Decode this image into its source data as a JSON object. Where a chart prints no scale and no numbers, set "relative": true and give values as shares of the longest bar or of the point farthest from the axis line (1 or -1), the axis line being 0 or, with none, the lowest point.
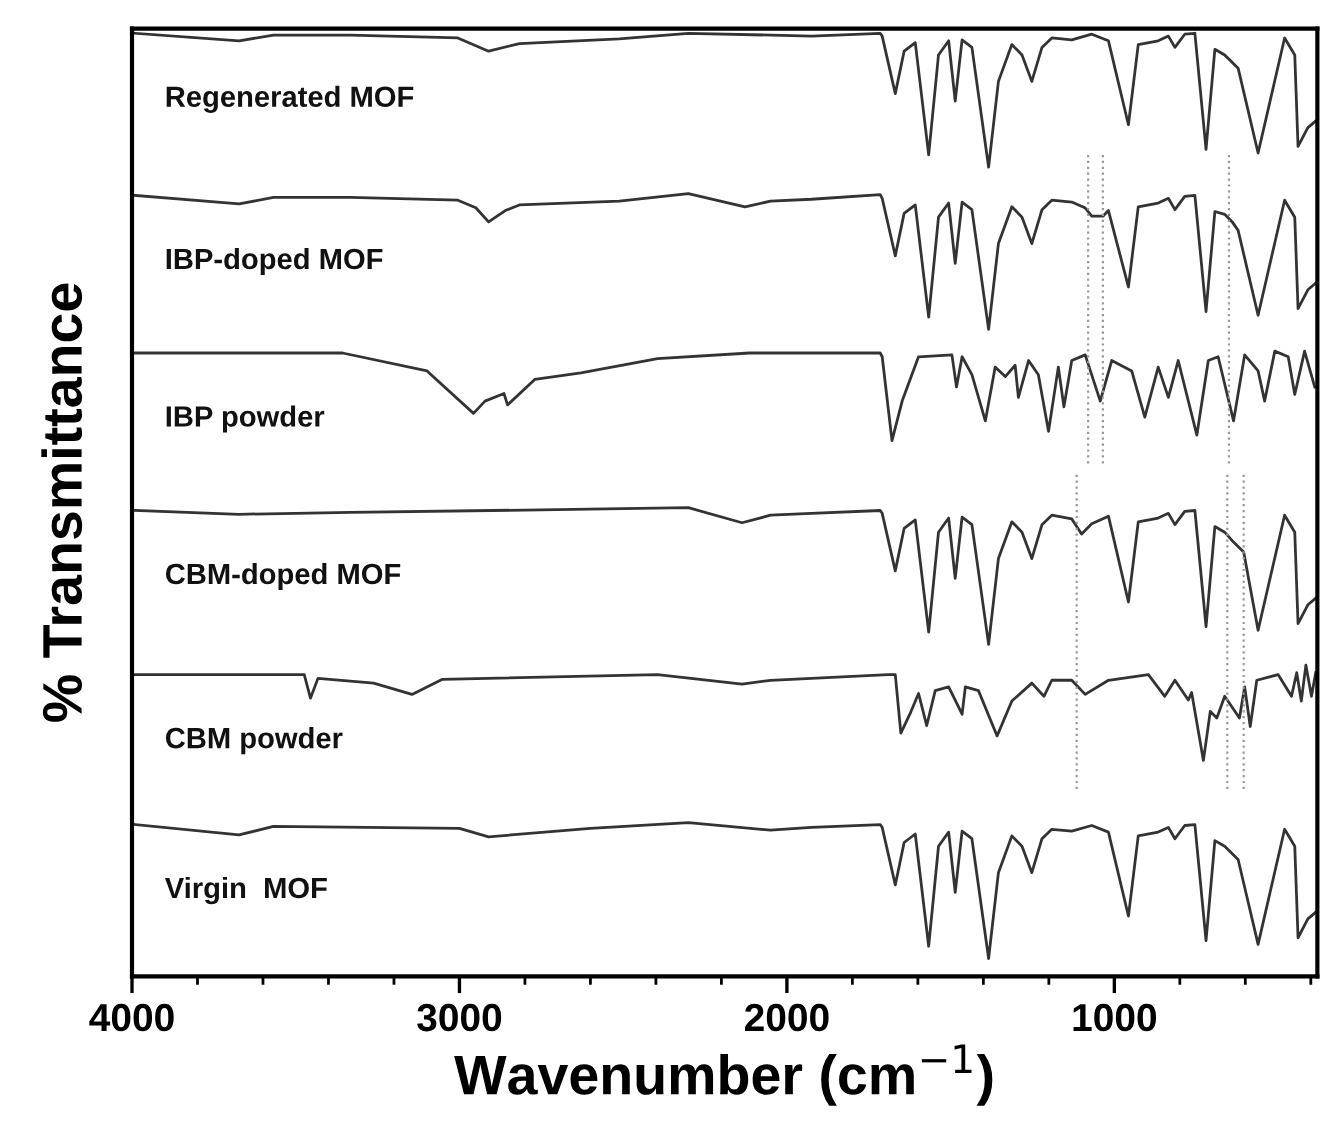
{
  "chart_data": {
    "type": "line",
    "relative": true,
    "xlabel": "Wavenumber (cm$^{−1}$)",
    "ylabel": "% Transmittance",
    "xlim": [
      4000,
      380
    ],
    "xticks": [
      4000,
      3000,
      2000,
      1000
    ],
    "tick_labels": "x",
    "grid": false,
    "legend": false,
    "marker": "none",
    "series": [
      {
        "name": "Regenerated MOF",
        "color": "#333333",
        "x": [
          3990,
          3673,
          3568,
          3333,
          3005,
          2911,
          2817,
          2512,
          2301,
          1925,
          1715,
          1709,
          1669,
          1642,
          1608,
          1567,
          1537,
          1506,
          1486,
          1465,
          1435,
          1384,
          1354,
          1313,
          1282,
          1252,
          1221,
          1191,
          1130,
          1069,
          1018,
          957,
          927,
          866,
          835,
          815,
          785,
          754,
          720,
          693,
          663,
          622,
          561,
          480,
          449,
          439,
          409,
          385
        ],
        "values": [
          1.0,
          0.992,
          0.998,
          0.998,
          0.995,
          0.981,
          0.989,
          0.994,
          1.0,
          0.997,
          1.0,
          0.997,
          0.936,
          0.981,
          0.99,
          0.871,
          0.977,
          0.992,
          0.928,
          0.993,
          0.985,
          0.858,
          0.949,
          0.988,
          0.977,
          0.949,
          0.985,
          0.995,
          0.993,
          0.999,
          0.992,
          0.903,
          0.988,
          0.992,
          0.997,
          0.985,
          0.999,
          1.0,
          0.877,
          0.983,
          0.977,
          0.963,
          0.873,
          0.995,
          0.977,
          0.88,
          0.9,
          0.907
        ]
      },
      {
        "name": "IBP-doped MOF",
        "color": "#333333",
        "x": [
          3990,
          3673,
          3568,
          3333,
          3005,
          2950,
          2911,
          2860,
          2817,
          2512,
          2301,
          2128,
          2050,
          1925,
          1715,
          1709,
          1669,
          1642,
          1608,
          1567,
          1537,
          1506,
          1486,
          1465,
          1435,
          1384,
          1354,
          1313,
          1282,
          1252,
          1221,
          1191,
          1130,
          1090,
          1069,
          1035,
          1018,
          957,
          927,
          866,
          835,
          815,
          785,
          754,
          720,
          693,
          663,
          640,
          622,
          561,
          480,
          449,
          439,
          409,
          385
        ],
        "values": [
          0.828,
          0.819,
          0.826,
          0.826,
          0.823,
          0.815,
          0.8,
          0.812,
          0.818,
          0.822,
          0.83,
          0.816,
          0.822,
          0.824,
          0.829,
          0.825,
          0.764,
          0.809,
          0.818,
          0.699,
          0.805,
          0.82,
          0.756,
          0.821,
          0.813,
          0.686,
          0.777,
          0.816,
          0.805,
          0.777,
          0.813,
          0.823,
          0.821,
          0.815,
          0.806,
          0.806,
          0.812,
          0.731,
          0.816,
          0.82,
          0.825,
          0.813,
          0.827,
          0.828,
          0.705,
          0.811,
          0.808,
          0.8,
          0.791,
          0.701,
          0.823,
          0.805,
          0.708,
          0.728,
          0.735
        ]
      },
      {
        "name": "IBP powder",
        "color": "#333333",
        "x": [
          3990,
          3357,
          3099,
          2957,
          2922,
          2864,
          2853,
          2770,
          2629,
          2395,
          2114,
          1715,
          1709,
          1679,
          1648,
          1598,
          1496,
          1482,
          1465,
          1435,
          1394,
          1364,
          1333,
          1303,
          1293,
          1262,
          1232,
          1201,
          1171,
          1154,
          1130,
          1089,
          1043,
          1008,
          947,
          907,
          866,
          835,
          805,
          748,
          713,
          683,
          636,
          602,
          561,
          541,
          510,
          469,
          449,
          419,
          388
        ],
        "values": [
          0.661,
          0.661,
          0.642,
          0.597,
          0.61,
          0.618,
          0.606,
          0.633,
          0.64,
          0.655,
          0.661,
          0.661,
          0.657,
          0.568,
          0.61,
          0.657,
          0.659,
          0.625,
          0.657,
          0.638,
          0.589,
          0.646,
          0.636,
          0.648,
          0.614,
          0.653,
          0.638,
          0.578,
          0.646,
          0.604,
          0.653,
          0.659,
          0.61,
          0.653,
          0.642,
          0.593,
          0.646,
          0.614,
          0.653,
          0.574,
          0.653,
          0.657,
          0.589,
          0.659,
          0.642,
          0.61,
          0.663,
          0.657,
          0.617,
          0.663,
          0.625
        ]
      },
      {
        "name": "CBM-doped MOF",
        "color": "#333333",
        "x": [
          3990,
          3673,
          3333,
          2900,
          2301,
          2137,
          2050,
          1925,
          1715,
          1709,
          1669,
          1642,
          1608,
          1567,
          1537,
          1506,
          1486,
          1465,
          1435,
          1384,
          1354,
          1313,
          1282,
          1252,
          1221,
          1191,
          1130,
          1100,
          1069,
          1018,
          957,
          927,
          866,
          835,
          815,
          785,
          754,
          720,
          693,
          663,
          640,
          605,
          561,
          480,
          449,
          439,
          409,
          385
        ],
        "values": [
          0.494,
          0.49,
          0.492,
          0.494,
          0.497,
          0.481,
          0.489,
          0.491,
          0.494,
          0.491,
          0.43,
          0.475,
          0.484,
          0.365,
          0.471,
          0.486,
          0.422,
          0.487,
          0.479,
          0.352,
          0.443,
          0.482,
          0.471,
          0.443,
          0.479,
          0.489,
          0.485,
          0.469,
          0.48,
          0.488,
          0.397,
          0.482,
          0.486,
          0.491,
          0.479,
          0.493,
          0.494,
          0.371,
          0.477,
          0.471,
          0.462,
          0.45,
          0.367,
          0.489,
          0.471,
          0.374,
          0.394,
          0.401
        ]
      },
      {
        "name": "CBM powder",
        "color": "#333333",
        "x": [
          3990,
          3474,
          3455,
          3432,
          3262,
          3145,
          3052,
          2395,
          2137,
          2050,
          1691,
          1669,
          1652,
          1622,
          1598,
          1573,
          1547,
          1506,
          1465,
          1455,
          1415,
          1358,
          1313,
          1252,
          1215,
          1191,
          1130,
          1089,
          1018,
          896,
          846,
          815,
          774,
          764,
          728,
          707,
          687,
          663,
          618,
          602,
          585,
          565,
          500,
          459,
          443,
          429,
          415,
          398,
          385
        ],
        "values": [
          0.32,
          0.32,
          0.295,
          0.316,
          0.311,
          0.299,
          0.315,
          0.32,
          0.31,
          0.314,
          0.32,
          0.32,
          0.258,
          0.28,
          0.3,
          0.266,
          0.303,
          0.307,
          0.278,
          0.307,
          0.303,
          0.255,
          0.292,
          0.311,
          0.297,
          0.314,
          0.314,
          0.299,
          0.314,
          0.32,
          0.297,
          0.314,
          0.293,
          0.301,
          0.229,
          0.281,
          0.274,
          0.297,
          0.274,
          0.307,
          0.265,
          0.314,
          0.32,
          0.297,
          0.322,
          0.292,
          0.33,
          0.297,
          0.322
        ]
      },
      {
        "name": "Virgin  MOF",
        "color": "#333333",
        "x": [
          3990,
          3673,
          3568,
          3000,
          2911,
          2600,
          2301,
          2050,
          1925,
          1715,
          1709,
          1669,
          1642,
          1608,
          1567,
          1537,
          1506,
          1486,
          1465,
          1435,
          1384,
          1354,
          1313,
          1282,
          1252,
          1221,
          1191,
          1130,
          1069,
          1018,
          957,
          927,
          866,
          835,
          815,
          785,
          754,
          720,
          693,
          663,
          622,
          561,
          480,
          449,
          439,
          409,
          385
        ],
        "values": [
          0.161,
          0.15,
          0.159,
          0.157,
          0.148,
          0.157,
          0.163,
          0.155,
          0.158,
          0.161,
          0.158,
          0.097,
          0.142,
          0.151,
          0.032,
          0.138,
          0.153,
          0.089,
          0.154,
          0.146,
          0.019,
          0.11,
          0.149,
          0.138,
          0.11,
          0.146,
          0.156,
          0.154,
          0.16,
          0.153,
          0.064,
          0.149,
          0.153,
          0.158,
          0.146,
          0.16,
          0.161,
          0.038,
          0.144,
          0.138,
          0.124,
          0.034,
          0.156,
          0.138,
          0.041,
          0.061,
          0.068
        ]
      },
      {
        "type": "line",
        "line_style": "dotted",
        "color": "#999999",
        "x": [
          1080,
          1080
        ],
        "values": [
          0.871,
          0.54
        ]
      },
      {
        "type": "line",
        "line_style": "dotted",
        "color": "#999999",
        "x": [
          1035,
          1035
        ],
        "values": [
          0.871,
          0.54
        ]
      },
      {
        "type": "line",
        "line_style": "dotted",
        "color": "#999999",
        "x": [
          650,
          650
        ],
        "values": [
          0.871,
          0.54
        ]
      },
      {
        "type": "line",
        "line_style": "dotted",
        "color": "#999999",
        "x": [
          1115,
          1115
        ],
        "values": [
          0.532,
          0.197
        ]
      },
      {
        "type": "line",
        "line_style": "dotted",
        "color": "#999999",
        "x": [
          655,
          655
        ],
        "values": [
          0.532,
          0.197
        ]
      },
      {
        "type": "line",
        "line_style": "dotted",
        "color": "#999999",
        "x": [
          605,
          605
        ],
        "values": [
          0.532,
          0.197
        ]
      }
    ]
  }
}
